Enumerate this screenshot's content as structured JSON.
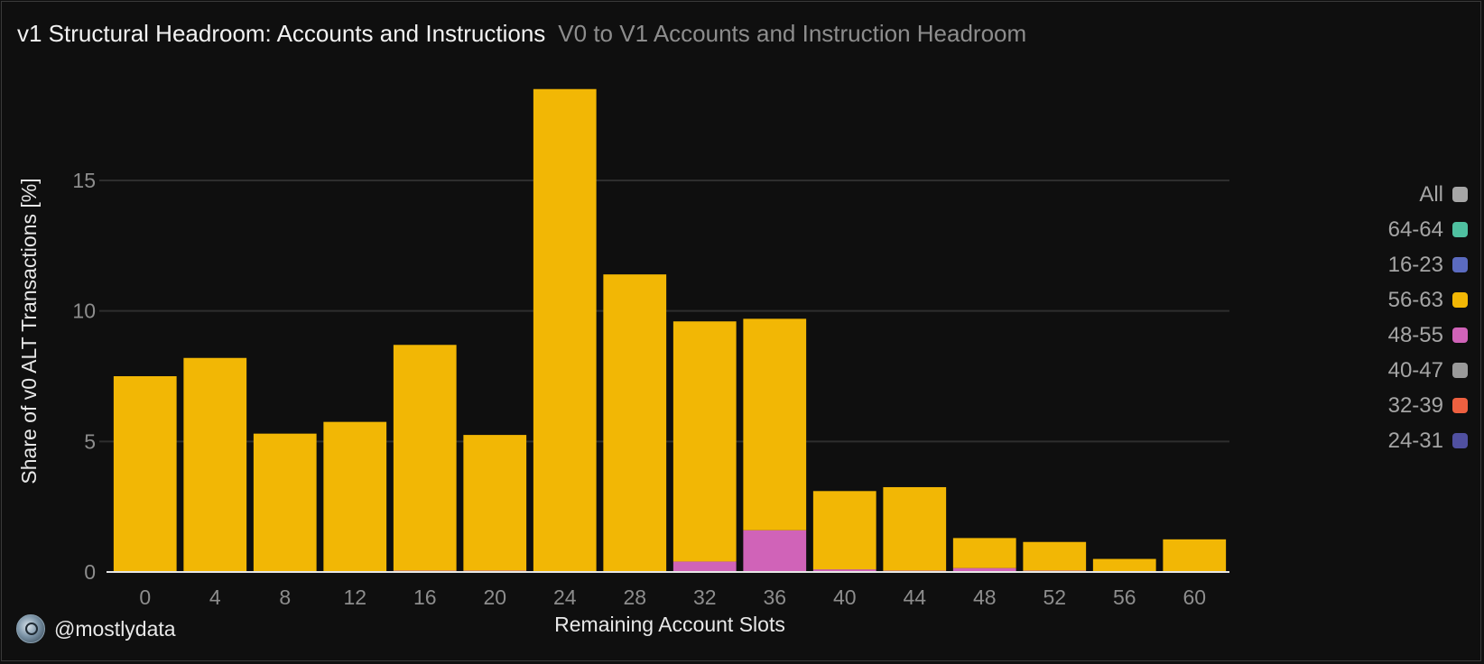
{
  "header": {
    "title": "v1 Structural Headroom: Accounts and Instructions",
    "subtitle": "V0 to V1 Accounts and Instruction Headroom"
  },
  "footer": {
    "avatar_icon": "avatar-icon",
    "handle": "@mostlydata"
  },
  "legend": [
    {
      "label": "All",
      "color": "#a6a6a6"
    },
    {
      "label": "64-64",
      "color": "#4fc0a0"
    },
    {
      "label": "16-23",
      "color": "#5b6bc0"
    },
    {
      "label": "56-63",
      "color": "#f2b705"
    },
    {
      "label": "48-55",
      "color": "#d063b8"
    },
    {
      "label": "40-47",
      "color": "#9a9a9a"
    },
    {
      "label": "32-39",
      "color": "#ee6040"
    },
    {
      "label": "24-31",
      "color": "#5050a0"
    }
  ],
  "chart_data": {
    "type": "bar",
    "stacked": true,
    "xlabel": "Remaining Account Slots",
    "ylabel": "Share of v0 ALT Transactions [%]",
    "ylim": [
      0,
      20
    ],
    "yticks": [
      0,
      5,
      10,
      15
    ],
    "grid": true,
    "legend_position": "right",
    "categories": [
      "0",
      "4",
      "8",
      "12",
      "16",
      "20",
      "24",
      "28",
      "32",
      "36",
      "40",
      "44",
      "48",
      "52",
      "56",
      "60"
    ],
    "series": [
      {
        "name": "48-55",
        "color": "#d063b8",
        "values": [
          0,
          0,
          0,
          0,
          0.05,
          0.05,
          0,
          0,
          0.4,
          1.6,
          0.1,
          0.05,
          0.15,
          0.05,
          0,
          0
        ]
      },
      {
        "name": "56-63",
        "color": "#f2b705",
        "values": [
          7.5,
          8.2,
          5.3,
          5.75,
          8.65,
          5.2,
          18.5,
          11.4,
          9.2,
          8.1,
          3.0,
          3.2,
          1.15,
          1.1,
          0.5,
          1.25
        ]
      }
    ]
  }
}
